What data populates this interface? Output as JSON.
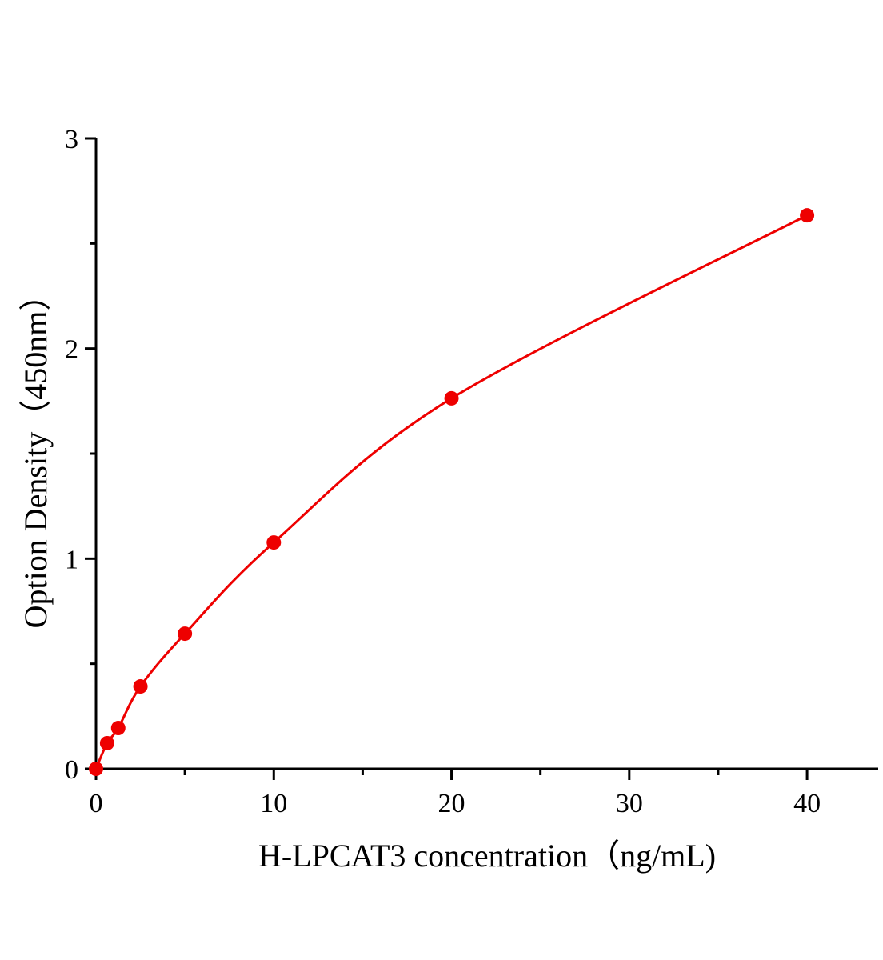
{
  "chart_data": {
    "type": "scatter",
    "title": "",
    "xlabel": "H-LPCAT3 concentration（ng/mL)",
    "ylabel": "Option Density（450nm）",
    "xlim": [
      0,
      44
    ],
    "ylim": [
      0,
      3
    ],
    "x_ticks": [
      0,
      10,
      20,
      30,
      40
    ],
    "x_tick_labels": [
      "0",
      "10",
      "20",
      "30",
      "40"
    ],
    "y_ticks": [
      0,
      1,
      2,
      3
    ],
    "y_tick_labels": [
      "0",
      "1",
      "2",
      "3"
    ],
    "grid": false,
    "legend": "none",
    "fitted_curve": true,
    "series": [
      {
        "color": "#ee0000",
        "x": [
          0,
          0.625,
          1.25,
          2.5,
          5,
          10,
          20,
          40
        ],
        "y": [
          0.0,
          0.122,
          0.194,
          0.392,
          0.643,
          1.077,
          1.763,
          2.634
        ]
      }
    ]
  }
}
